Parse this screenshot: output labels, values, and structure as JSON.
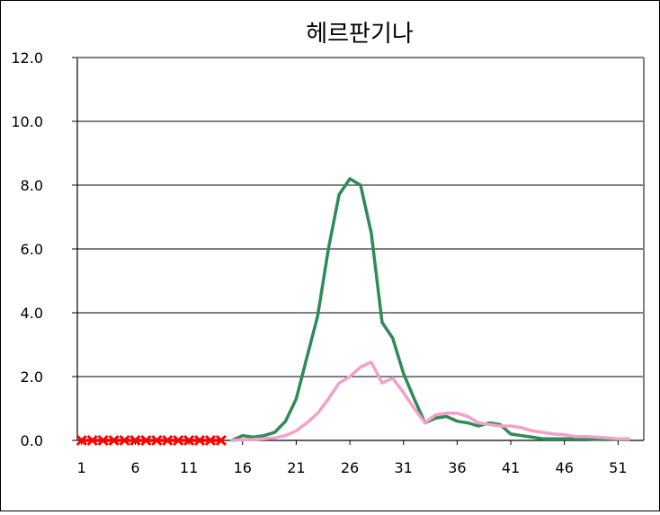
{
  "chart_data": {
    "type": "line",
    "title": "헤르판기나",
    "xlabel": "",
    "ylabel": "",
    "ylim": [
      0,
      12
    ],
    "xlim": [
      1,
      53
    ],
    "y_ticks": [
      "0.0",
      "2.0",
      "4.0",
      "6.0",
      "8.0",
      "10.0",
      "12.0"
    ],
    "x_ticks": [
      "1",
      "6",
      "11",
      "16",
      "21",
      "26",
      "31",
      "36",
      "41",
      "46",
      "51"
    ],
    "grid": "horizontal",
    "legend": "none",
    "series": [
      {
        "color": "#2e8b57",
        "marker": "none",
        "x": [
          15,
          16,
          17,
          18,
          19,
          20,
          21,
          22,
          23,
          24,
          25,
          26,
          27,
          28,
          29,
          30,
          31,
          32,
          33,
          34,
          35,
          36,
          37,
          38,
          39,
          40,
          41,
          42,
          43,
          44,
          45,
          46,
          47,
          48,
          49,
          50,
          51,
          52
        ],
        "y": [
          0.0,
          0.15,
          0.1,
          0.15,
          0.25,
          0.6,
          1.3,
          2.6,
          3.9,
          6.0,
          7.7,
          8.2,
          8.0,
          6.5,
          3.7,
          3.2,
          2.1,
          1.3,
          0.55,
          0.7,
          0.75,
          0.6,
          0.55,
          0.45,
          0.55,
          0.5,
          0.2,
          0.15,
          0.1,
          0.05,
          0.05,
          0.05,
          0.05,
          0.05,
          0.03,
          0.03,
          0.03,
          0.03
        ]
      },
      {
        "color": "#f4a0c8",
        "marker": "none",
        "x": [
          15,
          16,
          17,
          18,
          19,
          20,
          21,
          22,
          23,
          24,
          25,
          26,
          27,
          28,
          29,
          30,
          31,
          32,
          33,
          34,
          35,
          36,
          37,
          38,
          39,
          40,
          41,
          42,
          43,
          44,
          45,
          46,
          47,
          48,
          49,
          50,
          51,
          52
        ],
        "y": [
          0.0,
          0.02,
          0.03,
          0.05,
          0.08,
          0.15,
          0.3,
          0.55,
          0.85,
          1.3,
          1.8,
          2.0,
          2.3,
          2.45,
          1.8,
          1.95,
          1.5,
          1.0,
          0.55,
          0.8,
          0.85,
          0.85,
          0.75,
          0.55,
          0.5,
          0.45,
          0.45,
          0.4,
          0.3,
          0.25,
          0.2,
          0.18,
          0.12,
          0.12,
          0.1,
          0.08,
          0.05,
          0.05
        ]
      },
      {
        "color": "#ff0000",
        "marker": "x",
        "x": [
          1,
          2,
          3,
          4,
          5,
          6,
          7,
          8,
          9,
          10,
          11,
          12,
          13,
          14
        ],
        "y": [
          0,
          0,
          0,
          0,
          0,
          0,
          0,
          0,
          0,
          0,
          0,
          0,
          0,
          0
        ]
      }
    ]
  }
}
